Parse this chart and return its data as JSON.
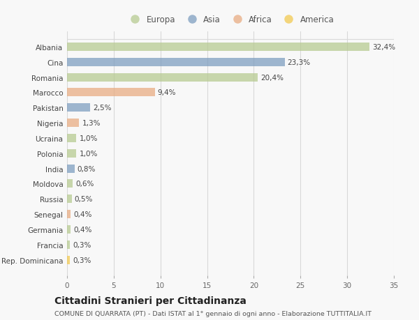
{
  "countries": [
    "Albania",
    "Cina",
    "Romania",
    "Marocco",
    "Pakistan",
    "Nigeria",
    "Ucraina",
    "Polonia",
    "India",
    "Moldova",
    "Russia",
    "Senegal",
    "Germania",
    "Francia",
    "Rep. Dominicana"
  ],
  "values": [
    32.4,
    23.3,
    20.4,
    9.4,
    2.5,
    1.3,
    1.0,
    1.0,
    0.8,
    0.6,
    0.5,
    0.4,
    0.4,
    0.3,
    0.3
  ],
  "labels": [
    "32,4%",
    "23,3%",
    "20,4%",
    "9,4%",
    "2,5%",
    "1,3%",
    "1,0%",
    "1,0%",
    "0,8%",
    "0,6%",
    "0,5%",
    "0,4%",
    "0,4%",
    "0,3%",
    "0,3%"
  ],
  "continent": [
    "Europa",
    "Asia",
    "Europa",
    "Africa",
    "Asia",
    "Africa",
    "Europa",
    "Europa",
    "Asia",
    "Europa",
    "Europa",
    "Africa",
    "Europa",
    "Europa",
    "America"
  ],
  "colors": {
    "Europa": "#b5c98e",
    "Asia": "#7a9bbe",
    "Africa": "#e8aa7e",
    "America": "#f2c84b"
  },
  "bar_alpha": 0.72,
  "title": "Cittadini Stranieri per Cittadinanza",
  "subtitle": "COMUNE DI QUARRATA (PT) - Dati ISTAT al 1° gennaio di ogni anno - Elaborazione TUTTITALIA.IT",
  "xlim": [
    0,
    35
  ],
  "xticks": [
    0,
    5,
    10,
    15,
    20,
    25,
    30,
    35
  ],
  "background_color": "#f8f8f8",
  "grid_color": "#d8d8d8",
  "bar_height": 0.55,
  "label_fontsize": 7.5,
  "ytick_fontsize": 7.5,
  "xtick_fontsize": 7.5,
  "title_fontsize": 10,
  "subtitle_fontsize": 6.8,
  "legend_fontsize": 8.5,
  "legend_order": [
    "Europa",
    "Asia",
    "Africa",
    "America"
  ]
}
